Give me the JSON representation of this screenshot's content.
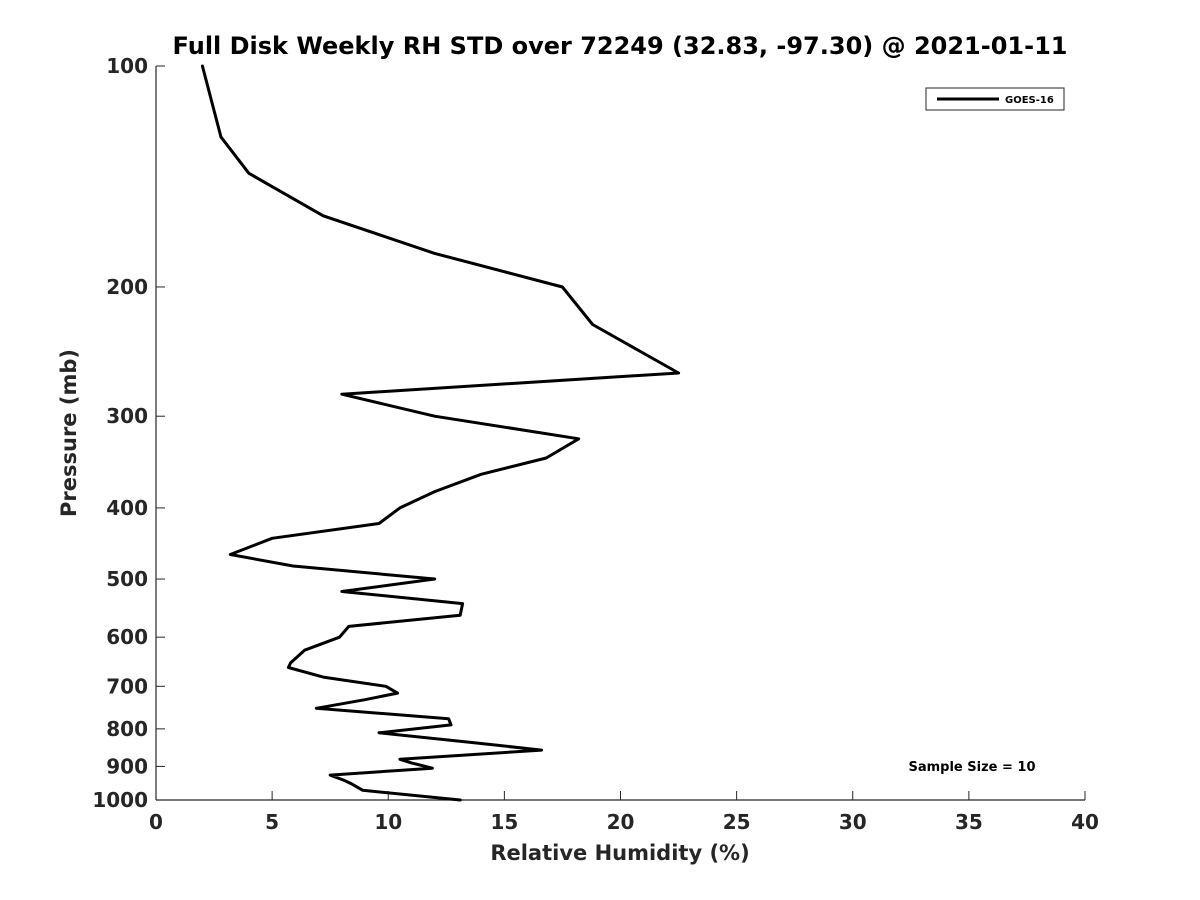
{
  "chart_data": {
    "type": "line",
    "title": "Full Disk Weekly RH STD over 72249 (32.83, -97.30) @ 2021-01-11",
    "xlabel": "Relative Humidity (%)",
    "ylabel": "Pressure (mb)",
    "xlim": [
      0,
      40
    ],
    "ylim": [
      100,
      1000
    ],
    "yscale": "log",
    "y_reversed": true,
    "xticks": [
      0,
      5,
      10,
      15,
      20,
      25,
      30,
      35,
      40
    ],
    "yticks": [
      100,
      200,
      300,
      400,
      500,
      600,
      700,
      800,
      900,
      1000
    ],
    "grid": false,
    "legend_position": "top-right",
    "annotation": "Sample Size = 10",
    "series": [
      {
        "name": "GOES-16",
        "color": "#000000",
        "x": [
          2.0,
          2.8,
          4.0,
          7.2,
          12.0,
          17.5,
          18.8,
          22.5,
          8.0,
          12.0,
          18.2,
          16.8,
          14.0,
          12.0,
          10.5,
          9.6,
          5.0,
          3.2,
          5.9,
          12.0,
          8.0,
          13.2,
          13.1,
          8.3,
          7.9,
          6.4,
          5.8,
          5.7,
          7.2,
          9.9,
          10.4,
          9.0,
          6.9,
          12.6,
          12.7,
          9.6,
          13.6,
          16.6,
          10.5,
          11.0,
          11.9,
          7.5,
          8.1,
          8.4,
          8.9,
          13.1
        ],
        "y": [
          100,
          125,
          140,
          160,
          180,
          200,
          225,
          262,
          280,
          300,
          322,
          342,
          360,
          380,
          400,
          420,
          440,
          463,
          480,
          500,
          520,
          540,
          560,
          580,
          600,
          625,
          650,
          660,
          680,
          700,
          715,
          730,
          750,
          775,
          790,
          810,
          835,
          855,
          880,
          890,
          905,
          925,
          940,
          950,
          970,
          1000
        ]
      }
    ]
  }
}
